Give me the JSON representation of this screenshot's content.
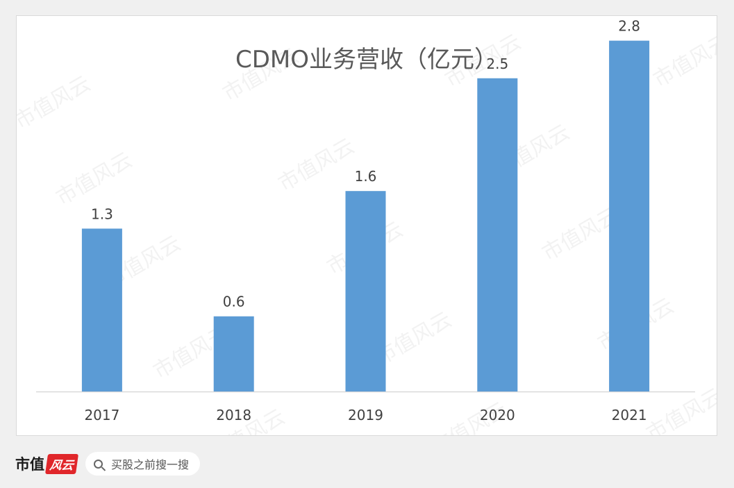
{
  "chart_data": {
    "type": "bar",
    "title": "CDMO业务营收（亿元）",
    "categories": [
      "2017",
      "2018",
      "2019",
      "2020",
      "2021"
    ],
    "values": [
      1.3,
      0.6,
      1.6,
      2.5,
      2.8
    ],
    "data_labels": [
      "1.3",
      "0.6",
      "1.6",
      "2.5",
      "2.8"
    ],
    "xlabel": "",
    "ylabel": "",
    "ylim": [
      0,
      3.0
    ],
    "grid": false,
    "legend": "none",
    "bar_color": "#5b9bd5"
  },
  "watermark": {
    "text": "市值风云"
  },
  "footer": {
    "logo_text": "市值",
    "logo_mark_text": "风云",
    "search_text": "买股之前搜一搜"
  },
  "colors": {
    "title": "#595959",
    "axis": "#d9d9d9",
    "labels": "#404040",
    "brand_red": "#e0262a"
  }
}
